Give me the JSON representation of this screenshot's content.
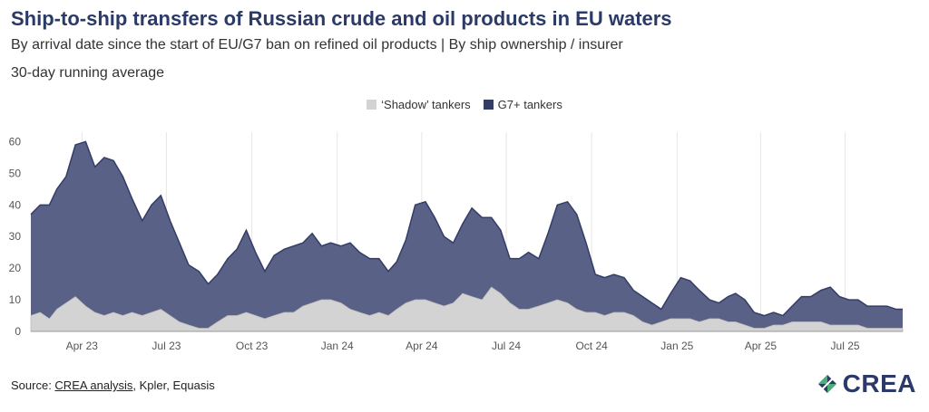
{
  "header": {
    "title": "Ship-to-ship transfers of Russian crude and oil products in EU waters",
    "subtitle": "By arrival date since the start of EU/G7 ban on refined oil products | By ship ownership / insurer",
    "note": "30-day running average"
  },
  "footer": {
    "source_prefix": "Source: ",
    "source_link": "CREA analysis",
    "source_rest": ", Kpler, Equasis",
    "logo_text": "CREA"
  },
  "colors": {
    "shadow": "#d3d3d3",
    "g7": "#5a6186",
    "g7_line": "#333d66",
    "grid": "#e6e6e6",
    "title": "#2b3a67"
  },
  "chart_data": {
    "type": "area",
    "stacked": true,
    "title": "Ship-to-ship transfers of Russian crude and oil products in EU waters",
    "ylim": [
      0,
      63
    ],
    "yticks": [
      0,
      10,
      20,
      30,
      40,
      50,
      60
    ],
    "legend_position": "top-center",
    "grid": "vertical",
    "x_ticks": [
      {
        "label": "Apr 23",
        "date": "2023-04-01"
      },
      {
        "label": "Jul 23",
        "date": "2023-07-01"
      },
      {
        "label": "Oct 23",
        "date": "2023-10-01"
      },
      {
        "label": "Jan 24",
        "date": "2024-01-01"
      },
      {
        "label": "Apr 24",
        "date": "2024-04-01"
      },
      {
        "label": "Jul 24",
        "date": "2024-07-01"
      },
      {
        "label": "Oct 24",
        "date": "2024-10-01"
      },
      {
        "label": "Jan 25",
        "date": "2025-01-01"
      },
      {
        "label": "Apr 25",
        "date": "2025-04-01"
      },
      {
        "label": "Jul 25",
        "date": "2025-07-01"
      }
    ],
    "x_range": [
      "2023-02-05",
      "2025-09-01"
    ],
    "series": [
      {
        "name": "‘Shadow’ tankers",
        "points": [
          [
            "2023-02-05",
            5
          ],
          [
            "2023-02-15",
            6
          ],
          [
            "2023-02-25",
            4
          ],
          [
            "2023-03-05",
            7
          ],
          [
            "2023-03-15",
            9
          ],
          [
            "2023-03-25",
            11
          ],
          [
            "2023-04-05",
            8
          ],
          [
            "2023-04-15",
            6
          ],
          [
            "2023-04-25",
            5
          ],
          [
            "2023-05-05",
            6
          ],
          [
            "2023-05-15",
            5
          ],
          [
            "2023-05-25",
            6
          ],
          [
            "2023-06-05",
            5
          ],
          [
            "2023-06-15",
            6
          ],
          [
            "2023-06-25",
            7
          ],
          [
            "2023-07-05",
            5
          ],
          [
            "2023-07-15",
            3
          ],
          [
            "2023-07-25",
            2
          ],
          [
            "2023-08-05",
            1
          ],
          [
            "2023-08-15",
            1
          ],
          [
            "2023-08-25",
            3
          ],
          [
            "2023-09-05",
            5
          ],
          [
            "2023-09-15",
            5
          ],
          [
            "2023-09-25",
            6
          ],
          [
            "2023-10-05",
            5
          ],
          [
            "2023-10-15",
            4
          ],
          [
            "2023-10-25",
            5
          ],
          [
            "2023-11-05",
            6
          ],
          [
            "2023-11-15",
            6
          ],
          [
            "2023-11-25",
            8
          ],
          [
            "2023-12-05",
            9
          ],
          [
            "2023-12-15",
            10
          ],
          [
            "2023-12-25",
            10
          ],
          [
            "2024-01-05",
            9
          ],
          [
            "2024-01-15",
            7
          ],
          [
            "2024-01-25",
            6
          ],
          [
            "2024-02-05",
            5
          ],
          [
            "2024-02-15",
            6
          ],
          [
            "2024-02-25",
            5
          ],
          [
            "2024-03-05",
            7
          ],
          [
            "2024-03-15",
            9
          ],
          [
            "2024-03-25",
            10
          ],
          [
            "2024-04-05",
            10
          ],
          [
            "2024-04-15",
            9
          ],
          [
            "2024-04-25",
            8
          ],
          [
            "2024-05-05",
            9
          ],
          [
            "2024-05-15",
            12
          ],
          [
            "2024-05-25",
            11
          ],
          [
            "2024-06-05",
            10
          ],
          [
            "2024-06-15",
            14
          ],
          [
            "2024-06-25",
            12
          ],
          [
            "2024-07-05",
            9
          ],
          [
            "2024-07-15",
            7
          ],
          [
            "2024-07-25",
            7
          ],
          [
            "2024-08-05",
            8
          ],
          [
            "2024-08-15",
            9
          ],
          [
            "2024-08-25",
            10
          ],
          [
            "2024-09-05",
            9
          ],
          [
            "2024-09-15",
            7
          ],
          [
            "2024-09-25",
            6
          ],
          [
            "2024-10-05",
            6
          ],
          [
            "2024-10-15",
            5
          ],
          [
            "2024-10-25",
            6
          ],
          [
            "2024-11-05",
            6
          ],
          [
            "2024-11-15",
            5
          ],
          [
            "2024-11-25",
            3
          ],
          [
            "2024-12-05",
            2
          ],
          [
            "2024-12-15",
            3
          ],
          [
            "2024-12-25",
            4
          ],
          [
            "2025-01-05",
            4
          ],
          [
            "2025-01-15",
            4
          ],
          [
            "2025-01-25",
            3
          ],
          [
            "2025-02-05",
            4
          ],
          [
            "2025-02-15",
            4
          ],
          [
            "2025-02-25",
            3
          ],
          [
            "2025-03-05",
            3
          ],
          [
            "2025-03-15",
            2
          ],
          [
            "2025-03-25",
            1
          ],
          [
            "2025-04-05",
            1
          ],
          [
            "2025-04-15",
            2
          ],
          [
            "2025-04-25",
            2
          ],
          [
            "2025-05-05",
            3
          ],
          [
            "2025-05-15",
            3
          ],
          [
            "2025-05-25",
            3
          ],
          [
            "2025-06-05",
            3
          ],
          [
            "2025-06-15",
            2
          ],
          [
            "2025-06-25",
            2
          ],
          [
            "2025-07-05",
            2
          ],
          [
            "2025-07-15",
            2
          ],
          [
            "2025-07-25",
            1
          ],
          [
            "2025-08-05",
            1
          ],
          [
            "2025-08-15",
            1
          ],
          [
            "2025-08-25",
            1
          ],
          [
            "2025-09-01",
            1
          ]
        ]
      },
      {
        "name": "G7+ tankers",
        "points": [
          [
            "2023-02-05",
            32
          ],
          [
            "2023-02-15",
            34
          ],
          [
            "2023-02-25",
            36
          ],
          [
            "2023-03-05",
            38
          ],
          [
            "2023-03-15",
            40
          ],
          [
            "2023-03-25",
            48
          ],
          [
            "2023-04-05",
            52
          ],
          [
            "2023-04-15",
            46
          ],
          [
            "2023-04-25",
            50
          ],
          [
            "2023-05-05",
            48
          ],
          [
            "2023-05-15",
            44
          ],
          [
            "2023-05-25",
            36
          ],
          [
            "2023-06-05",
            30
          ],
          [
            "2023-06-15",
            34
          ],
          [
            "2023-06-25",
            36
          ],
          [
            "2023-07-05",
            30
          ],
          [
            "2023-07-15",
            25
          ],
          [
            "2023-07-25",
            19
          ],
          [
            "2023-08-05",
            18
          ],
          [
            "2023-08-15",
            14
          ],
          [
            "2023-08-25",
            15
          ],
          [
            "2023-09-05",
            18
          ],
          [
            "2023-09-15",
            21
          ],
          [
            "2023-09-25",
            26
          ],
          [
            "2023-10-05",
            20
          ],
          [
            "2023-10-15",
            15
          ],
          [
            "2023-10-25",
            19
          ],
          [
            "2023-11-05",
            20
          ],
          [
            "2023-11-15",
            21
          ],
          [
            "2023-11-25",
            20
          ],
          [
            "2023-12-05",
            22
          ],
          [
            "2023-12-15",
            17
          ],
          [
            "2023-12-25",
            18
          ],
          [
            "2024-01-05",
            18
          ],
          [
            "2024-01-15",
            21
          ],
          [
            "2024-01-25",
            19
          ],
          [
            "2024-02-05",
            18
          ],
          [
            "2024-02-15",
            17
          ],
          [
            "2024-02-25",
            14
          ],
          [
            "2024-03-05",
            15
          ],
          [
            "2024-03-15",
            20
          ],
          [
            "2024-03-25",
            30
          ],
          [
            "2024-04-05",
            31
          ],
          [
            "2024-04-15",
            27
          ],
          [
            "2024-04-25",
            22
          ],
          [
            "2024-05-05",
            19
          ],
          [
            "2024-05-15",
            22
          ],
          [
            "2024-05-25",
            28
          ],
          [
            "2024-06-05",
            26
          ],
          [
            "2024-06-15",
            22
          ],
          [
            "2024-06-25",
            20
          ],
          [
            "2024-07-05",
            14
          ],
          [
            "2024-07-15",
            16
          ],
          [
            "2024-07-25",
            18
          ],
          [
            "2024-08-05",
            15
          ],
          [
            "2024-08-15",
            22
          ],
          [
            "2024-08-25",
            30
          ],
          [
            "2024-09-05",
            32
          ],
          [
            "2024-09-15",
            30
          ],
          [
            "2024-09-25",
            22
          ],
          [
            "2024-10-05",
            12
          ],
          [
            "2024-10-15",
            12
          ],
          [
            "2024-10-25",
            12
          ],
          [
            "2024-11-05",
            11
          ],
          [
            "2024-11-15",
            8
          ],
          [
            "2024-11-25",
            8
          ],
          [
            "2024-12-05",
            7
          ],
          [
            "2024-12-15",
            4
          ],
          [
            "2024-12-25",
            8
          ],
          [
            "2025-01-05",
            13
          ],
          [
            "2025-01-15",
            12
          ],
          [
            "2025-01-25",
            10
          ],
          [
            "2025-02-05",
            6
          ],
          [
            "2025-02-15",
            5
          ],
          [
            "2025-02-25",
            8
          ],
          [
            "2025-03-05",
            9
          ],
          [
            "2025-03-15",
            8
          ],
          [
            "2025-03-25",
            5
          ],
          [
            "2025-04-05",
            4
          ],
          [
            "2025-04-15",
            4
          ],
          [
            "2025-04-25",
            3
          ],
          [
            "2025-05-05",
            5
          ],
          [
            "2025-05-15",
            8
          ],
          [
            "2025-05-25",
            8
          ],
          [
            "2025-06-05",
            10
          ],
          [
            "2025-06-15",
            12
          ],
          [
            "2025-06-25",
            9
          ],
          [
            "2025-07-05",
            8
          ],
          [
            "2025-07-15",
            8
          ],
          [
            "2025-07-25",
            7
          ],
          [
            "2025-08-05",
            7
          ],
          [
            "2025-08-15",
            7
          ],
          [
            "2025-08-25",
            6
          ],
          [
            "2025-09-01",
            6
          ]
        ]
      }
    ]
  }
}
